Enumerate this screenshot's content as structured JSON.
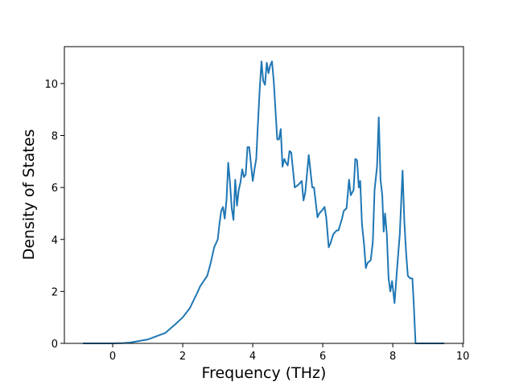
{
  "chart_data": {
    "type": "line",
    "xlabel": "Frequency (THz)",
    "ylabel": "Density of States",
    "color": "#1f77b4",
    "x": [
      -0.85,
      0.0,
      0.3,
      0.5,
      1.0,
      1.5,
      1.8,
      2.0,
      2.2,
      2.4,
      2.5,
      2.6,
      2.7,
      2.8,
      2.9,
      3.0,
      3.05,
      3.1,
      3.15,
      3.2,
      3.25,
      3.3,
      3.35,
      3.4,
      3.45,
      3.5,
      3.55,
      3.6,
      3.65,
      3.7,
      3.75,
      3.8,
      3.85,
      3.9,
      4.0,
      4.05,
      4.1,
      4.15,
      4.2,
      4.25,
      4.3,
      4.35,
      4.4,
      4.45,
      4.5,
      4.55,
      4.6,
      4.7,
      4.75,
      4.8,
      4.85,
      4.9,
      4.95,
      5.0,
      5.05,
      5.1,
      5.2,
      5.3,
      5.4,
      5.45,
      5.5,
      5.6,
      5.7,
      5.75,
      5.85,
      5.9,
      6.0,
      6.05,
      6.1,
      6.17,
      6.22,
      6.3,
      6.4,
      6.45,
      6.55,
      6.6,
      6.68,
      6.75,
      6.8,
      6.88,
      6.93,
      6.98,
      7.03,
      7.07,
      7.12,
      7.18,
      7.23,
      7.28,
      7.37,
      7.43,
      7.48,
      7.55,
      7.6,
      7.65,
      7.7,
      7.74,
      7.78,
      7.83,
      7.88,
      7.93,
      7.98,
      8.05,
      8.13,
      8.2,
      8.28,
      8.33,
      8.38,
      8.43,
      8.5,
      8.56,
      8.6,
      8.65,
      9.47
    ],
    "values": [
      0,
      0,
      0.01,
      0.03,
      0.15,
      0.4,
      0.75,
      1.0,
      1.35,
      1.9,
      2.2,
      2.4,
      2.6,
      3.1,
      3.7,
      4.0,
      4.6,
      5.1,
      5.25,
      4.8,
      5.5,
      6.95,
      6.2,
      5.2,
      4.75,
      6.3,
      5.3,
      5.9,
      6.2,
      6.7,
      6.4,
      6.5,
      7.55,
      7.55,
      6.25,
      6.7,
      7.1,
      8.5,
      9.8,
      10.85,
      10.1,
      9.95,
      10.8,
      10.4,
      10.7,
      10.85,
      10.1,
      7.85,
      7.85,
      8.25,
      6.8,
      7.1,
      6.95,
      6.85,
      7.4,
      7.35,
      6.0,
      6.1,
      6.25,
      5.5,
      5.8,
      7.25,
      6.0,
      6.0,
      4.85,
      5.0,
      5.15,
      5.25,
      4.85,
      3.7,
      3.85,
      4.2,
      4.35,
      4.35,
      4.8,
      5.1,
      5.2,
      6.3,
      5.7,
      5.9,
      7.1,
      7.05,
      6.0,
      6.25,
      4.6,
      3.8,
      2.9,
      3.1,
      3.2,
      3.9,
      5.9,
      6.8,
      8.7,
      6.3,
      5.7,
      4.3,
      5.0,
      4.2,
      2.5,
      2.0,
      2.4,
      1.55,
      3.0,
      4.2,
      6.65,
      4.7,
      3.5,
      2.6,
      2.5,
      2.5,
      1.5,
      0,
      0
    ],
    "xlim": [
      -1.38,
      10.02
    ],
    "ylim": [
      0,
      11.42
    ],
    "xticks": [
      0,
      2,
      4,
      6,
      8,
      10
    ],
    "yticks": [
      0,
      2,
      4,
      6,
      8,
      10
    ]
  }
}
